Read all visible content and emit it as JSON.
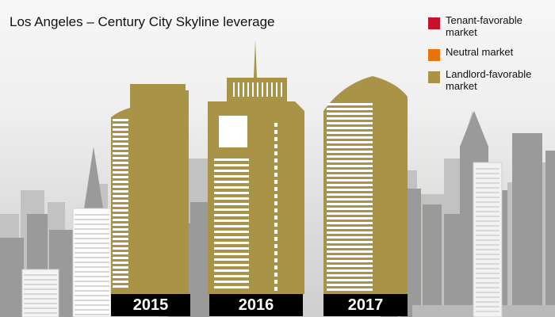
{
  "chart_data": {
    "type": "table",
    "title": "Los Angeles – Century City Skyline leverage",
    "legend": {
      "placement": "top-right",
      "items": [
        {
          "label": "Tenant-favorable market",
          "color": "#c8102e"
        },
        {
          "label": "Neutral market",
          "color": "#e8730c"
        },
        {
          "label": "Landlord-favorable market",
          "color": "#a89346"
        }
      ]
    },
    "categories": [
      "2015",
      "2016",
      "2017"
    ],
    "values": [
      "Landlord-favorable market",
      "Landlord-favorable market",
      "Landlord-favorable market"
    ],
    "building_color": "#a89346"
  }
}
